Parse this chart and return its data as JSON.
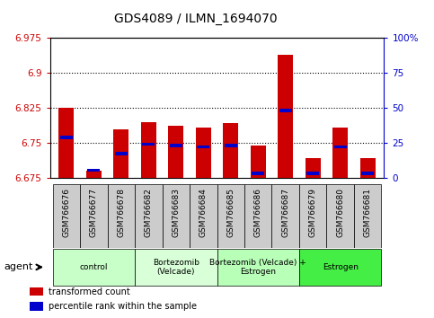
{
  "title": "GDS4089 / ILMN_1694070",
  "samples": [
    "GSM766676",
    "GSM766677",
    "GSM766678",
    "GSM766682",
    "GSM766683",
    "GSM766684",
    "GSM766685",
    "GSM766686",
    "GSM766687",
    "GSM766679",
    "GSM766680",
    "GSM766681"
  ],
  "red_values": [
    6.825,
    6.69,
    6.78,
    6.795,
    6.788,
    6.783,
    6.793,
    6.745,
    6.94,
    6.718,
    6.783,
    6.718
  ],
  "blue_values": [
    6.762,
    6.692,
    6.727,
    6.748,
    6.745,
    6.742,
    6.745,
    6.685,
    6.82,
    6.685,
    6.742,
    6.685
  ],
  "y_min": 6.675,
  "y_max": 6.975,
  "y_ticks": [
    6.675,
    6.75,
    6.825,
    6.9,
    6.975
  ],
  "right_ticks": [
    0,
    25,
    50,
    75,
    100
  ],
  "right_tick_labels": [
    "0",
    "25",
    "50",
    "75",
    "100%"
  ],
  "groups": [
    {
      "label": "control",
      "start": 0,
      "end": 3,
      "color": "#c8ffc8"
    },
    {
      "label": "Bortezomib\n(Velcade)",
      "start": 3,
      "end": 6,
      "color": "#d8ffd8"
    },
    {
      "label": "Bortezomib (Velcade) +\nEstrogen",
      "start": 6,
      "end": 9,
      "color": "#b8ffb8"
    },
    {
      "label": "Estrogen",
      "start": 9,
      "end": 12,
      "color": "#44ee44"
    }
  ],
  "bar_color": "#cc0000",
  "marker_color": "#0000cc",
  "tick_color_left": "#cc0000",
  "tick_color_right": "#0000cc",
  "bar_width": 0.55,
  "agent_label": "agent",
  "legend": [
    {
      "color": "#cc0000",
      "label": "transformed count"
    },
    {
      "color": "#0000cc",
      "label": "percentile rank within the sample"
    }
  ],
  "grid_lines": [
    6.75,
    6.825,
    6.9
  ],
  "bg_color_plot": "#ffffff",
  "label_area_color": "#dddddd"
}
